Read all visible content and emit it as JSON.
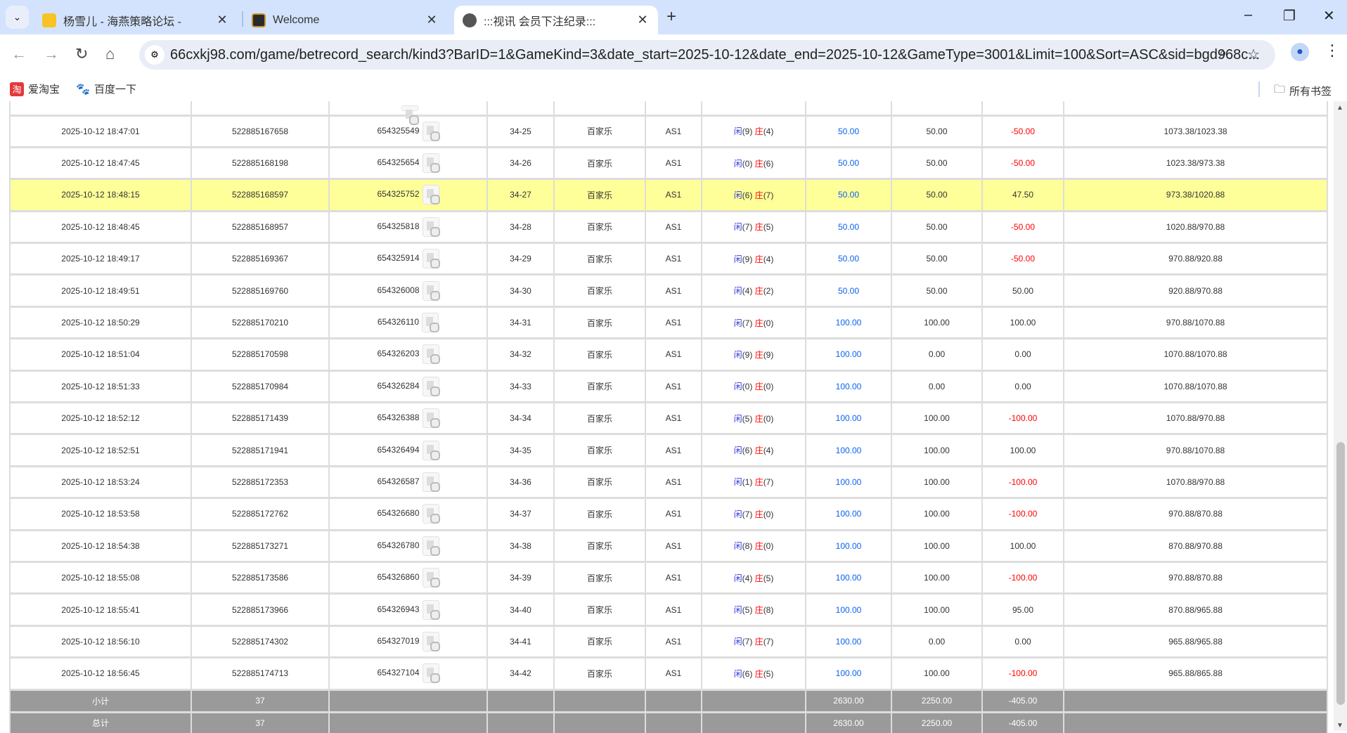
{
  "browser": {
    "tabs": [
      {
        "title": "杨雪儿 - 海燕策略论坛 -",
        "favicon": "yellow-forum-icon",
        "active": false
      },
      {
        "title": "Welcome",
        "favicon": "gold-logo-icon",
        "active": false
      },
      {
        "title": ":::视讯 会员下注纪录:::",
        "favicon": "globe-icon",
        "active": true
      }
    ],
    "url": "66cxkj98.com/game/betrecord_search/kind3?BarID=1&GameKind=3&date_start=2025-10-12&date_end=2025-10-12&GameType=3001&Limit=100&Sort=ASC&sid=bgd968c...",
    "bookmarks": [
      {
        "label": "爱淘宝",
        "icon": "taobao-icon"
      },
      {
        "label": "百度一下",
        "icon": "baidu-paw-icon"
      }
    ],
    "all_bookmarks_label": "所有书签"
  },
  "colors": {
    "highlight_row": "#ffff99",
    "negative": "#ff0000",
    "bet_amount": "#0b62f0",
    "summary_row": "#9a9a9a"
  },
  "table": {
    "player_label": "闲",
    "banker_label": "庄",
    "rows": [
      {
        "time": "2025-10-12 18:47:01",
        "bet_id": "522885167658",
        "game_id": "654325549",
        "round": "34-25",
        "game": "百家乐",
        "table": "AS1",
        "player": "(9)",
        "banker": "(4)",
        "bet": "50.00",
        "valid": "50.00",
        "win": "-50.00",
        "balance": "1073.38/1023.38"
      },
      {
        "time": "2025-10-12 18:47:45",
        "bet_id": "522885168198",
        "game_id": "654325654",
        "round": "34-26",
        "game": "百家乐",
        "table": "AS1",
        "player": "(0)",
        "banker": "(6)",
        "bet": "50.00",
        "valid": "50.00",
        "win": "-50.00",
        "balance": "1023.38/973.38"
      },
      {
        "time": "2025-10-12 18:48:15",
        "bet_id": "522885168597",
        "game_id": "654325752",
        "round": "34-27",
        "game": "百家乐",
        "table": "AS1",
        "player": "(6)",
        "banker": "(7)",
        "bet": "50.00",
        "valid": "50.00",
        "win": "47.50",
        "balance": "973.38/1020.88",
        "highlighted": true
      },
      {
        "time": "2025-10-12 18:48:45",
        "bet_id": "522885168957",
        "game_id": "654325818",
        "round": "34-28",
        "game": "百家乐",
        "table": "AS1",
        "player": "(7)",
        "banker": "(5)",
        "bet": "50.00",
        "valid": "50.00",
        "win": "-50.00",
        "balance": "1020.88/970.88"
      },
      {
        "time": "2025-10-12 18:49:17",
        "bet_id": "522885169367",
        "game_id": "654325914",
        "round": "34-29",
        "game": "百家乐",
        "table": "AS1",
        "player": "(9)",
        "banker": "(4)",
        "bet": "50.00",
        "valid": "50.00",
        "win": "-50.00",
        "balance": "970.88/920.88"
      },
      {
        "time": "2025-10-12 18:49:51",
        "bet_id": "522885169760",
        "game_id": "654326008",
        "round": "34-30",
        "game": "百家乐",
        "table": "AS1",
        "player": "(4)",
        "banker": "(2)",
        "bet": "50.00",
        "valid": "50.00",
        "win": "50.00",
        "balance": "920.88/970.88"
      },
      {
        "time": "2025-10-12 18:50:29",
        "bet_id": "522885170210",
        "game_id": "654326110",
        "round": "34-31",
        "game": "百家乐",
        "table": "AS1",
        "player": "(7)",
        "banker": "(0)",
        "bet": "100.00",
        "valid": "100.00",
        "win": "100.00",
        "balance": "970.88/1070.88"
      },
      {
        "time": "2025-10-12 18:51:04",
        "bet_id": "522885170598",
        "game_id": "654326203",
        "round": "34-32",
        "game": "百家乐",
        "table": "AS1",
        "player": "(9)",
        "banker": "(9)",
        "bet": "100.00",
        "valid": "0.00",
        "win": "0.00",
        "balance": "1070.88/1070.88"
      },
      {
        "time": "2025-10-12 18:51:33",
        "bet_id": "522885170984",
        "game_id": "654326284",
        "round": "34-33",
        "game": "百家乐",
        "table": "AS1",
        "player": "(0)",
        "banker": "(0)",
        "bet": "100.00",
        "valid": "0.00",
        "win": "0.00",
        "balance": "1070.88/1070.88"
      },
      {
        "time": "2025-10-12 18:52:12",
        "bet_id": "522885171439",
        "game_id": "654326388",
        "round": "34-34",
        "game": "百家乐",
        "table": "AS1",
        "player": "(5)",
        "banker": "(0)",
        "bet": "100.00",
        "valid": "100.00",
        "win": "-100.00",
        "balance": "1070.88/970.88"
      },
      {
        "time": "2025-10-12 18:52:51",
        "bet_id": "522885171941",
        "game_id": "654326494",
        "round": "34-35",
        "game": "百家乐",
        "table": "AS1",
        "player": "(6)",
        "banker": "(4)",
        "bet": "100.00",
        "valid": "100.00",
        "win": "100.00",
        "balance": "970.88/1070.88"
      },
      {
        "time": "2025-10-12 18:53:24",
        "bet_id": "522885172353",
        "game_id": "654326587",
        "round": "34-36",
        "game": "百家乐",
        "table": "AS1",
        "player": "(1)",
        "banker": "(7)",
        "bet": "100.00",
        "valid": "100.00",
        "win": "-100.00",
        "balance": "1070.88/970.88"
      },
      {
        "time": "2025-10-12 18:53:58",
        "bet_id": "522885172762",
        "game_id": "654326680",
        "round": "34-37",
        "game": "百家乐",
        "table": "AS1",
        "player": "(7)",
        "banker": "(0)",
        "bet": "100.00",
        "valid": "100.00",
        "win": "-100.00",
        "balance": "970.88/870.88"
      },
      {
        "time": "2025-10-12 18:54:38",
        "bet_id": "522885173271",
        "game_id": "654326780",
        "round": "34-38",
        "game": "百家乐",
        "table": "AS1",
        "player": "(8)",
        "banker": "(0)",
        "bet": "100.00",
        "valid": "100.00",
        "win": "100.00",
        "balance": "870.88/970.88"
      },
      {
        "time": "2025-10-12 18:55:08",
        "bet_id": "522885173586",
        "game_id": "654326860",
        "round": "34-39",
        "game": "百家乐",
        "table": "AS1",
        "player": "(4)",
        "banker": "(5)",
        "bet": "100.00",
        "valid": "100.00",
        "win": "-100.00",
        "balance": "970.88/870.88"
      },
      {
        "time": "2025-10-12 18:55:41",
        "bet_id": "522885173966",
        "game_id": "654326943",
        "round": "34-40",
        "game": "百家乐",
        "table": "AS1",
        "player": "(5)",
        "banker": "(8)",
        "bet": "100.00",
        "valid": "100.00",
        "win": "95.00",
        "balance": "870.88/965.88"
      },
      {
        "time": "2025-10-12 18:56:10",
        "bet_id": "522885174302",
        "game_id": "654327019",
        "round": "34-41",
        "game": "百家乐",
        "table": "AS1",
        "player": "(7)",
        "banker": "(7)",
        "bet": "100.00",
        "valid": "0.00",
        "win": "0.00",
        "balance": "965.88/965.88"
      },
      {
        "time": "2025-10-12 18:56:45",
        "bet_id": "522885174713",
        "game_id": "654327104",
        "round": "34-42",
        "game": "百家乐",
        "table": "AS1",
        "player": "(6)",
        "banker": "(5)",
        "bet": "100.00",
        "valid": "100.00",
        "win": "-100.00",
        "balance": "965.88/865.88"
      }
    ],
    "summary": [
      {
        "label": "小计",
        "count": "37",
        "bet": "2630.00",
        "valid": "2250.00",
        "win": "-405.00"
      },
      {
        "label": "总计",
        "count": "37",
        "bet": "2630.00",
        "valid": "2250.00",
        "win": "-405.00"
      }
    ]
  }
}
